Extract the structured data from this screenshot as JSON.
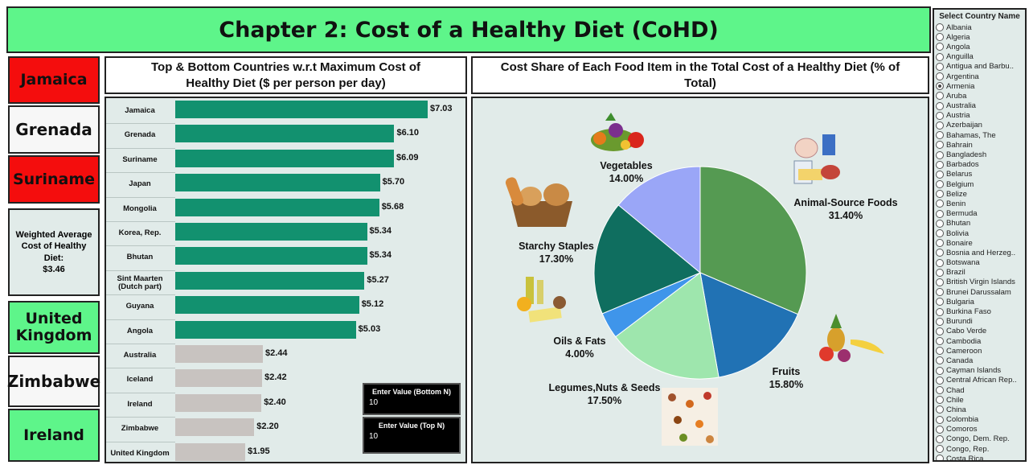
{
  "header": {
    "title": "Chapter 2: Cost of a Healthy Diet (CoHD)"
  },
  "top_cards": [
    "Jamaica",
    "Grenada",
    "Suriname"
  ],
  "avg_card": {
    "line1": "Weighted Average",
    "line2": "Cost of Healthy",
    "line3": "Diet:",
    "value": "$3.46"
  },
  "bottom_cards": [
    "United Kingdom",
    "Zimbabwe",
    "Ireland"
  ],
  "bar_panel": {
    "title_line1": "Top & Bottom Countries w.r.t Maximum Cost of",
    "title_line2": "Healthy Diet ($ per person per day)"
  },
  "pie_panel": {
    "title_line1": "Cost Share of Each Food Item in the Total Cost of a Healthy Diet (% of",
    "title_line2": "Total)"
  },
  "inputs": {
    "bottom": {
      "label": "Enter Value (Bottom N)",
      "value": "10"
    },
    "top": {
      "label": "Enter Value (Top N)",
      "value": "10"
    }
  },
  "slicer": {
    "title": "Select Country Name",
    "selected": "Armenia",
    "items": [
      "Albania",
      "Algeria",
      "Angola",
      "Anguilla",
      "Antigua and Barbu..",
      "Argentina",
      "Armenia",
      "Aruba",
      "Australia",
      "Austria",
      "Azerbaijan",
      "Bahamas, The",
      "Bahrain",
      "Bangladesh",
      "Barbados",
      "Belarus",
      "Belgium",
      "Belize",
      "Benin",
      "Bermuda",
      "Bhutan",
      "Bolivia",
      "Bonaire",
      "Bosnia and Herzeg..",
      "Botswana",
      "Brazil",
      "British Virgin Islands",
      "Brunei Darussalam",
      "Bulgaria",
      "Burkina Faso",
      "Burundi",
      "Cabo Verde",
      "Cambodia",
      "Cameroon",
      "Canada",
      "Cayman Islands",
      "Central African Rep..",
      "Chad",
      "Chile",
      "China",
      "Colombia",
      "Comoros",
      "Congo, Dem. Rep.",
      "Congo, Rep.",
      "Costa Rica"
    ]
  },
  "colors": {
    "top_bar": "#12916f",
    "bottom_bar": "#c8c3c0",
    "title_green": "#5ef58a",
    "alert_red": "#f40d0d"
  },
  "chart_data": [
    {
      "type": "bar",
      "orientation": "horizontal",
      "title": "Top & Bottom Countries w.r.t Maximum Cost of Healthy Diet ($ per person per day)",
      "categories": [
        "Jamaica",
        "Grenada",
        "Suriname",
        "Japan",
        "Mongolia",
        "Korea, Rep.",
        "Bhutan",
        "Sint Maarten (Dutch part)",
        "Guyana",
        "Angola",
        "Australia",
        "Iceland",
        "Ireland",
        "Zimbabwe",
        "United Kingdom"
      ],
      "values": [
        7.03,
        6.1,
        6.09,
        5.7,
        5.68,
        5.34,
        5.34,
        5.27,
        5.12,
        5.03,
        2.44,
        2.42,
        2.4,
        2.2,
        1.95
      ],
      "labels": [
        "$7.03",
        "$6.10",
        "$6.09",
        "$5.70",
        "$5.68",
        "$5.34",
        "$5.34",
        "$5.27",
        "$5.12",
        "$5.03",
        "$2.44",
        "$2.42",
        "$2.40",
        "$2.20",
        "$1.95"
      ],
      "groups": [
        "top",
        "top",
        "top",
        "top",
        "top",
        "top",
        "top",
        "top",
        "top",
        "top",
        "bottom",
        "bottom",
        "bottom",
        "bottom",
        "bottom"
      ]
    },
    {
      "type": "pie",
      "title": "Cost Share of Each Food Item in the Total Cost of a Healthy Diet (% of Total)",
      "slices": [
        {
          "name": "Animal-Source Foods",
          "value": 31.4,
          "label": "31.40%",
          "color": "#559a52"
        },
        {
          "name": "Fruits",
          "value": 15.8,
          "label": "15.80%",
          "color": "#2172b4"
        },
        {
          "name": "Legumes,Nuts & Seeds",
          "value": 17.5,
          "label": "17.50%",
          "color": "#9ee6ad"
        },
        {
          "name": "Oils & Fats",
          "value": 4.0,
          "label": "4.00%",
          "color": "#3f95ea"
        },
        {
          "name": "Starchy Staples",
          "value": 17.3,
          "label": "17.30%",
          "color": "#0f6e5f"
        },
        {
          "name": "Vegetables",
          "value": 14.0,
          "label": "14.00%",
          "color": "#9aa6f7"
        }
      ]
    }
  ]
}
